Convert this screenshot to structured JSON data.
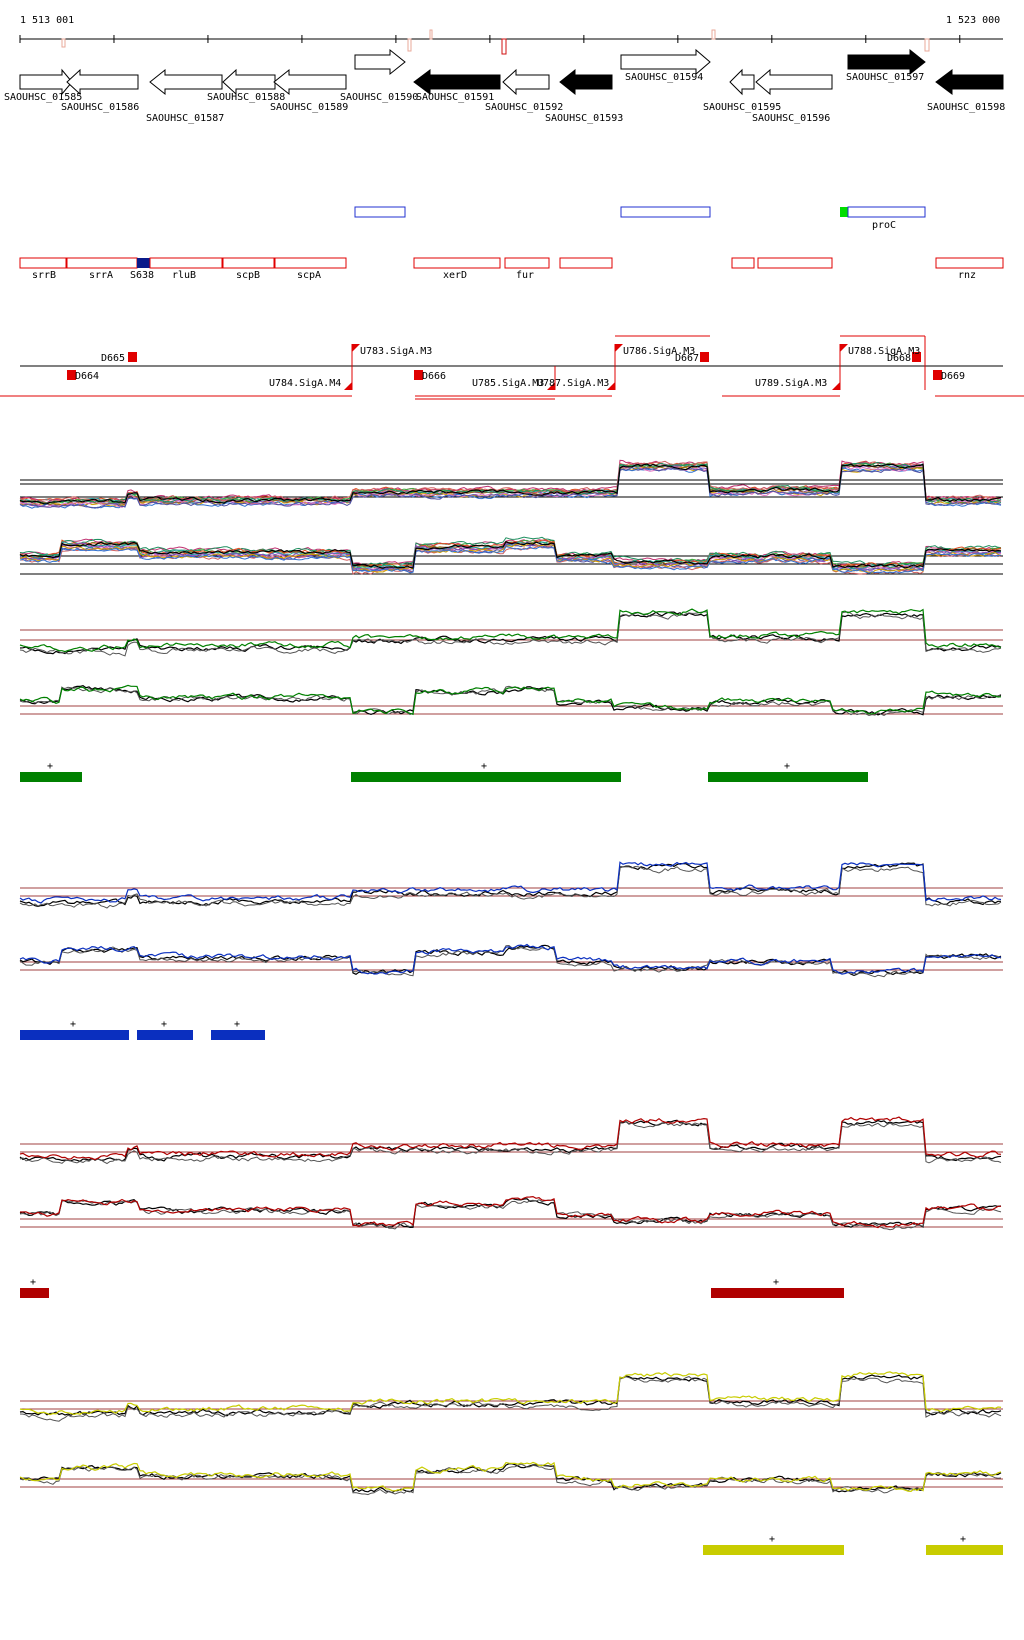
{
  "coords": {
    "start": "1 513 001",
    "end": "1 523 000"
  },
  "genes": [
    {
      "label": "SAOUHSC_01585",
      "strand": "+",
      "filled": false
    },
    {
      "label": "SAOUHSC_01586",
      "strand": "-",
      "filled": false
    },
    {
      "label": "SAOUHSC_01587",
      "strand": "-",
      "filled": false
    },
    {
      "label": "SAOUHSC_01588",
      "strand": "-",
      "filled": false
    },
    {
      "label": "SAOUHSC_01589",
      "strand": "-",
      "filled": false
    },
    {
      "label": "SAOUHSC_01590",
      "strand": "+",
      "filled": false
    },
    {
      "label": "SAOUHSC_01591",
      "strand": "-",
      "filled": true
    },
    {
      "label": "SAOUHSC_01592",
      "strand": "-",
      "filled": false
    },
    {
      "label": "SAOUHSC_01593",
      "strand": "-",
      "filled": true
    },
    {
      "label": "SAOUHSC_01594",
      "strand": "+",
      "filled": false
    },
    {
      "label": "SAOUHSC_01595",
      "strand": "-",
      "filled": false
    },
    {
      "label": "SAOUHSC_01596",
      "strand": "-",
      "filled": false
    },
    {
      "label": "SAOUHSC_01597",
      "strand": "+",
      "filled": true
    },
    {
      "label": "SAOUHSC_01598",
      "strand": "-",
      "filled": true
    }
  ],
  "gene_names": [
    "srrB",
    "srrA",
    "S638",
    "rluB",
    "scpB",
    "scpA",
    "xerD",
    "fur",
    "rnz",
    "proC"
  ],
  "features_upper": [
    "D665",
    "U783.SigA.M3",
    "U786.SigA.M3",
    "D667",
    "U788.SigA.M3",
    "D668"
  ],
  "features_lower": [
    "D664",
    "U784.SigA.M4",
    "D666",
    "U785.SigA.M3",
    "U787.SigA.M3",
    "U789.SigA.M3",
    "D669"
  ],
  "segment_marker": "+",
  "colors": {
    "green": "#008000",
    "blue": "#0a2fbf",
    "red": "#b00000",
    "yellow": "#c8cc00",
    "threshold": "#a04040",
    "annotation_red": "#e00000",
    "annotation_blue": "#2030d0",
    "s638": "#0a1a8a",
    "proc_green": "#00dd00"
  }
}
